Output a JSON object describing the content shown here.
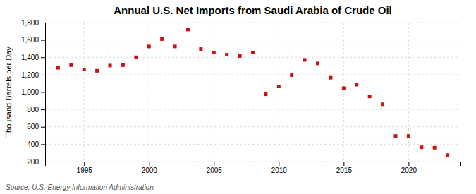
{
  "chart_data": {
    "type": "scatter",
    "title": "Annual U.S. Net Imports from Saudi Arabia of Crude Oil",
    "ylabel": "Thousand Barrels per Day",
    "source": "Source: U.S. Energy Information Administration",
    "x": [
      1993,
      1994,
      1995,
      1996,
      1997,
      1998,
      1999,
      2000,
      2001,
      2002,
      2003,
      2004,
      2005,
      2006,
      2007,
      2008,
      2009,
      2010,
      2011,
      2012,
      2013,
      2014,
      2015,
      2016,
      2017,
      2018,
      2019,
      2020,
      2021,
      2022,
      2023
    ],
    "values": [
      1280,
      1310,
      1260,
      1245,
      1305,
      1310,
      1400,
      1525,
      1610,
      1525,
      1720,
      1495,
      1455,
      1430,
      1415,
      1455,
      975,
      1065,
      1195,
      1370,
      1330,
      1165,
      1045,
      1085,
      950,
      860,
      495,
      495,
      365,
      360,
      275
    ],
    "color": "#cc1111",
    "marker": "square",
    "grid": true,
    "xlim": [
      1992.0,
      2024.0
    ],
    "xticks": [
      1995,
      2000,
      2005,
      2010,
      2015,
      2020
    ],
    "ylim": [
      200,
      1800
    ],
    "yticks": [
      200,
      400,
      600,
      800,
      {
        "value": 1000,
        "label": "1,000"
      },
      {
        "value": 1200,
        "label": "1,200"
      },
      {
        "value": 1400,
        "label": "1,400"
      },
      {
        "value": 1600,
        "label": "1,600"
      },
      {
        "value": 1800,
        "label": "1,800"
      }
    ]
  }
}
